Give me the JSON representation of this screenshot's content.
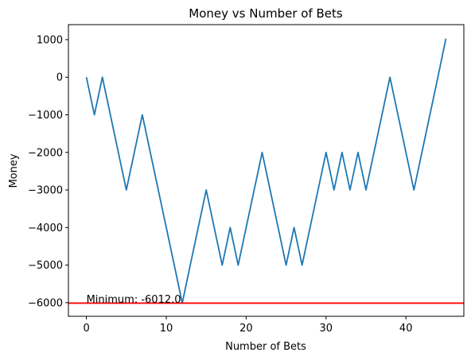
{
  "chart_data": {
    "type": "line",
    "title": "Money vs Number of Bets",
    "xlabel": "Number of Bets",
    "ylabel": "Money",
    "xlim": [
      -2.25,
      47.25
    ],
    "ylim": [
      -6362,
      1400
    ],
    "xticks": [
      0,
      10,
      20,
      30,
      40
    ],
    "yticks": [
      -6000,
      -5000,
      -4000,
      -3000,
      -2000,
      -1000,
      0,
      1000
    ],
    "grid": false,
    "series": [
      {
        "color": "#1f77b4",
        "x": [
          0,
          1,
          2,
          3,
          4,
          5,
          6,
          7,
          8,
          9,
          10,
          11,
          12,
          13,
          14,
          15,
          16,
          17,
          18,
          19,
          20,
          21,
          22,
          23,
          24,
          25,
          26,
          27,
          28,
          29,
          30,
          31,
          32,
          33,
          34,
          35,
          36,
          37,
          38,
          39,
          40,
          41,
          42,
          43,
          44,
          45
        ],
        "values": [
          0,
          -1000,
          0,
          -1000,
          -2000,
          -3000,
          -2000,
          -1000,
          -2000,
          -3000,
          -4000,
          -5000,
          -6012,
          -5000,
          -4000,
          -3000,
          -4000,
          -5000,
          -4000,
          -5000,
          -4000,
          -3000,
          -2000,
          -3000,
          -4000,
          -5000,
          -4000,
          -5000,
          -4000,
          -3000,
          -2000,
          -3000,
          -2000,
          -3000,
          -2000,
          -3000,
          -2000,
          -1000,
          0,
          -1000,
          -2000,
          -3000,
          -2000,
          -1000,
          0,
          1025
        ]
      }
    ],
    "hline": {
      "y": -6012,
      "color": "#ff0000"
    },
    "annotation": {
      "text": "Minimum: -6012.0",
      "x": 0,
      "y": -6012
    }
  }
}
